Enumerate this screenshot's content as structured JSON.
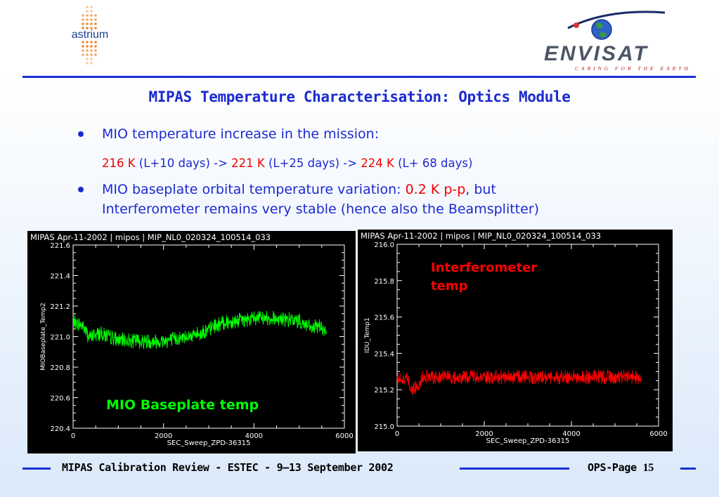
{
  "header": {
    "astrium_logo_text": "astrium",
    "envisat_logo_text": "ENVISAT",
    "envisat_tagline": "CARING FOR THE EARTH"
  },
  "title": "MIPAS Temperature Characterisation: Optics Module",
  "bullets": {
    "b1": "MIO temperature increase in the mission:",
    "b1_sub": {
      "v1": "216 K",
      "t1": " (L+10 days) -> ",
      "v2": "221 K",
      "t2": " (L+25 days) -> ",
      "v3": "224 K",
      "t3": " (L+ 68 days)"
    },
    "b2_a": "MIO baseplate orbital temperature variation: ",
    "b2_val": "0.2 K p-p",
    "b2_b": ", but",
    "b2_line2": "Interferometer remains very stable (hence also the Beamsplitter)"
  },
  "colors": {
    "accent": "#1c2ad0",
    "highlight": "#ee0000",
    "mio_trace": "#00ff00",
    "idu_trace": "#ff0000"
  },
  "chart_data": [
    {
      "type": "line",
      "header": "MIPAS    Apr-11-2002 | mipos | MIP_NL0_020324_100514_033",
      "xlabel": "SEC_Sweep_ZPD-36315",
      "ylabel": "MIOBaseplate_Temp2",
      "annotation": "MIO Baseplate temp",
      "xlim": [
        0,
        6000
      ],
      "ylim": [
        220.4,
        221.6
      ],
      "xticks": [
        "0",
        "2000",
        "4000",
        "6000"
      ],
      "yticks": [
        "220.4",
        "220.6",
        "220.8",
        "221.0",
        "221.2",
        "221.4",
        "221.6"
      ],
      "series": [
        {
          "x": [
            0,
            200,
            350,
            600,
            1000,
            1500,
            2000,
            2500,
            2900,
            3200,
            3500,
            4000,
            4500,
            5000,
            5300,
            5450,
            5600
          ],
          "y": [
            221.1,
            221.07,
            221.0,
            221.02,
            220.98,
            220.97,
            220.97,
            221.0,
            221.03,
            221.08,
            221.1,
            221.12,
            221.12,
            221.1,
            221.05,
            221.08,
            221.02
          ],
          "noise_pp": 0.1
        }
      ]
    },
    {
      "type": "line",
      "header": "MIPAS    Apr-11-2002 | mipos | MIP_NL0_020324_100514_033",
      "xlabel": "SEC_Sweep_ZPD-36315",
      "ylabel": "IDU_Temp1",
      "annotation": "Interferometer\ntemp",
      "xlim": [
        0,
        6000
      ],
      "ylim": [
        215.0,
        216.0
      ],
      "xticks": [
        "0",
        "2000",
        "4000",
        "6000"
      ],
      "yticks": [
        "215.0",
        "215.2",
        "215.4",
        "215.6",
        "215.8",
        "216.0"
      ],
      "series": [
        {
          "x": [
            0,
            250,
            300,
            500,
            600,
            2000,
            4000,
            5600
          ],
          "y": [
            215.26,
            215.26,
            215.2,
            215.22,
            215.27,
            215.27,
            215.27,
            215.27
          ],
          "noise_pp": 0.08
        }
      ]
    }
  ],
  "footer": {
    "text": "MIPAS Calibration Review - ESTEC - 9–13 September  2002",
    "page_label": "OPS-Page ",
    "page_number": "15"
  }
}
